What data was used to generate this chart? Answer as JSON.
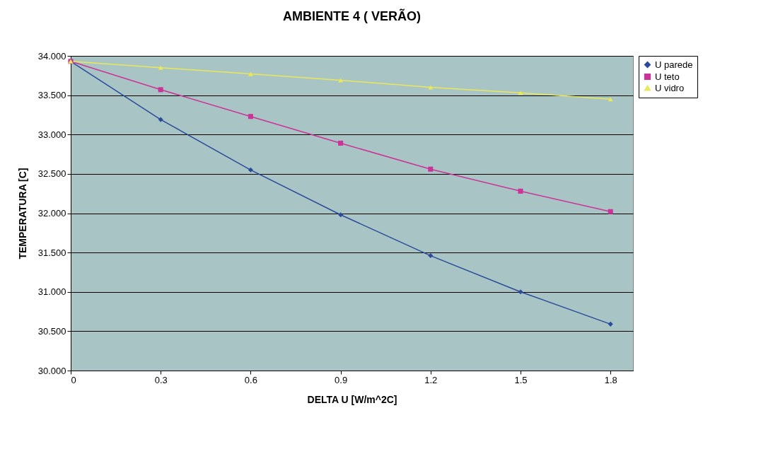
{
  "chart_data": {
    "type": "line",
    "title": "AMBIENTE 4 ( VERÃO)",
    "xlabel": "DELTA U [W/m^2C]",
    "ylabel": "TEMPERATURA [C]",
    "x": [
      0,
      0.3,
      0.6,
      0.9,
      1.2,
      1.5,
      1.8
    ],
    "series": [
      {
        "name": "U parede",
        "color": "#2a4b9b",
        "marker": "diamond",
        "values": [
          33.93,
          33.19,
          32.55,
          31.98,
          31.46,
          31.0,
          30.59
        ]
      },
      {
        "name": "U teto",
        "color": "#cc3399",
        "marker": "square",
        "values": [
          33.93,
          33.57,
          33.23,
          32.89,
          32.56,
          32.28,
          32.02
        ]
      },
      {
        "name": "U vidro",
        "color": "#e8e85a",
        "marker": "triangle",
        "values": [
          33.93,
          33.85,
          33.77,
          33.69,
          33.6,
          33.53,
          33.45
        ]
      }
    ],
    "xlim": [
      0,
      1.875
    ],
    "xticks": [
      0,
      0.3,
      0.6,
      0.9,
      1.2,
      1.5,
      1.8
    ],
    "ylim": [
      30,
      34
    ],
    "yticks": [
      {
        "value": 30,
        "label": "30.000"
      },
      {
        "value": 30.5,
        "label": "30.500"
      },
      {
        "value": 31,
        "label": "31.000"
      },
      {
        "value": 31.5,
        "label": "31.500"
      },
      {
        "value": 32,
        "label": "32.000"
      },
      {
        "value": 32.5,
        "label": "32.500"
      },
      {
        "value": 33,
        "label": "33.000"
      },
      {
        "value": 33.5,
        "label": "33.500"
      },
      {
        "value": 34,
        "label": "34.000"
      }
    ],
    "grid": "y",
    "legend": "right",
    "line_style": "solid"
  }
}
